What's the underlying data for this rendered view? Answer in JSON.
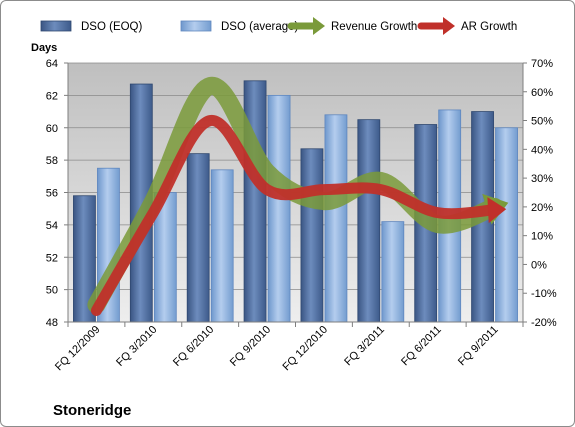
{
  "chart_data": {
    "type": "bar",
    "title": "Stoneridge",
    "ylabel": "Days",
    "ylim": [
      48,
      64
    ],
    "y_ticks": [
      48,
      50,
      52,
      54,
      56,
      58,
      60,
      62,
      64
    ],
    "y2lim": [
      -20,
      70
    ],
    "y2_ticks": [
      "-20%",
      "-10%",
      "0%",
      "10%",
      "20%",
      "30%",
      "40%",
      "50%",
      "60%",
      "70%"
    ],
    "y2_values": [
      -20,
      -10,
      0,
      10,
      20,
      30,
      40,
      50,
      60,
      70
    ],
    "categories": [
      "FQ 12/2009",
      "FQ 3/2010",
      "FQ 6/2010",
      "FQ 9/2010",
      "FQ 12/2010",
      "FQ 3/2011",
      "FQ 6/2011",
      "FQ 9/2011"
    ],
    "series": [
      {
        "name": "DSO (EOQ)",
        "type": "bar",
        "axis": "left",
        "color": "#4f6fa0",
        "values": [
          55.8,
          62.7,
          58.4,
          62.9,
          58.7,
          60.5,
          60.2,
          61.0
        ]
      },
      {
        "name": "DSO (average)",
        "type": "bar",
        "axis": "left",
        "color": "#8eb4e3",
        "values": [
          57.5,
          56.0,
          57.4,
          62.0,
          60.8,
          54.2,
          61.1,
          60.0
        ]
      },
      {
        "name": "Revenue Growth",
        "type": "line",
        "axis": "right",
        "color": "#7a9a3a",
        "values": [
          -14,
          22,
          62,
          32,
          22,
          29,
          14,
          20
        ]
      },
      {
        "name": "AR Growth",
        "type": "line",
        "axis": "right",
        "color": "#c0302a",
        "values": [
          -16,
          18,
          50,
          26,
          26,
          26,
          18,
          19
        ]
      }
    ],
    "grid": true,
    "legend_position": "top"
  }
}
